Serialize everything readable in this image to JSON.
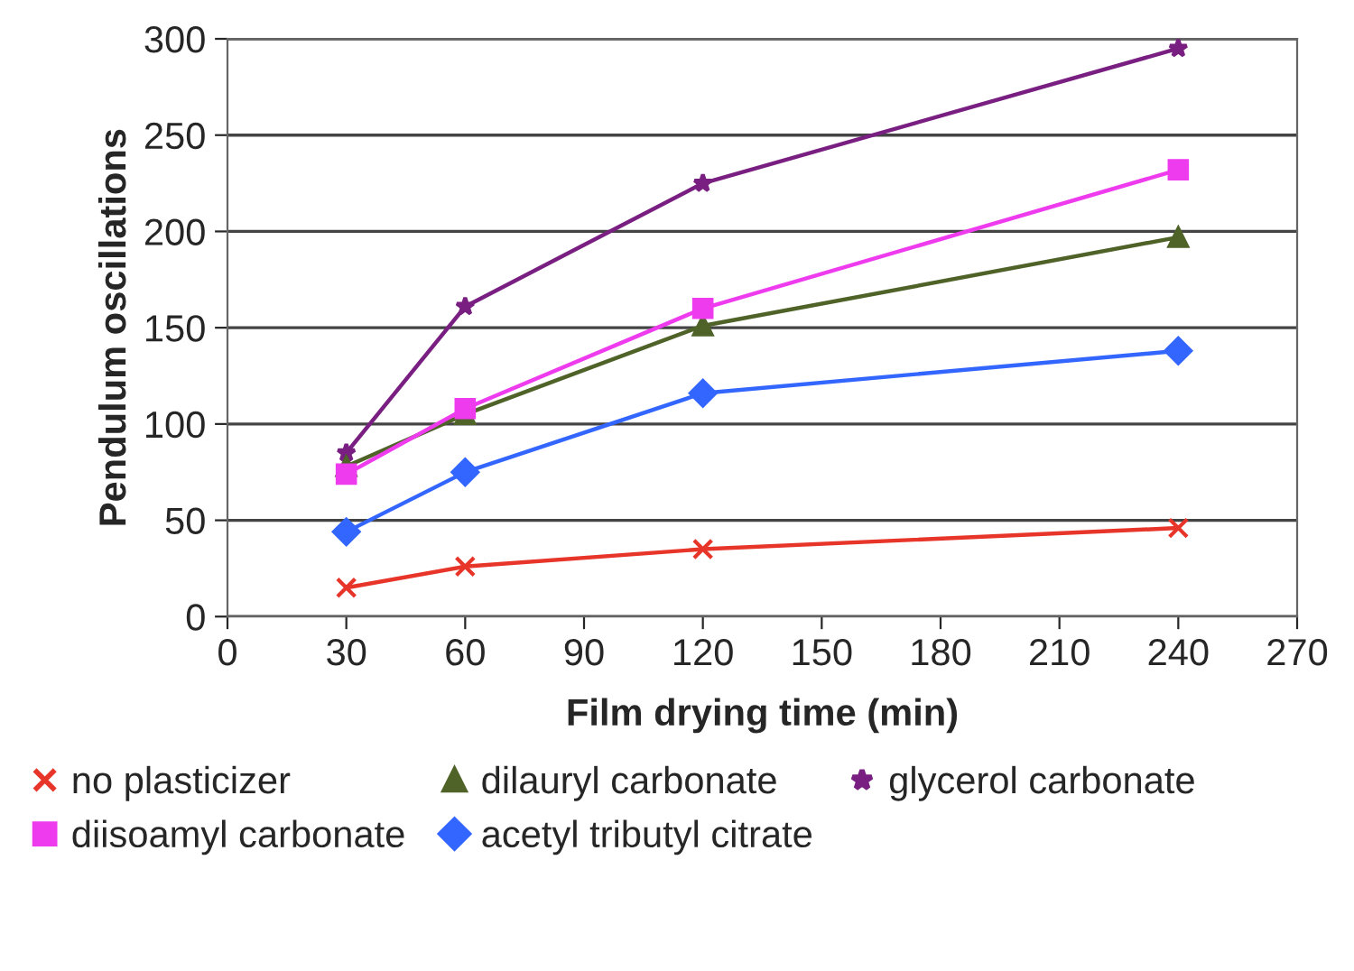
{
  "chart_data": {
    "type": "line",
    "xlabel": "Film drying time (min)",
    "ylabel": "Pendulum oscillations",
    "x": [
      30,
      60,
      120,
      240
    ],
    "series": [
      {
        "name": "no plasticizer",
        "color": "#e8352a",
        "marker": "cross",
        "values": [
          15,
          26,
          35,
          46
        ]
      },
      {
        "name": "diisoamyl carbonate",
        "color": "#ee3bee",
        "marker": "square",
        "values": [
          74,
          108,
          160,
          232
        ]
      },
      {
        "name": "dilauryl carbonate",
        "color": "#4f6228",
        "marker": "triangle",
        "values": [
          78,
          105,
          151,
          197
        ]
      },
      {
        "name": "acetyl tributyl citrate",
        "color": "#3366ff",
        "marker": "diamond",
        "values": [
          44,
          75,
          116,
          138
        ]
      },
      {
        "name": "glycerol carbonate",
        "color": "#7a1f82",
        "marker": "star",
        "values": [
          85,
          161,
          225,
          295
        ]
      }
    ],
    "xlim": [
      0,
      270
    ],
    "xticks": [
      0,
      30,
      60,
      90,
      120,
      150,
      180,
      210,
      240,
      270
    ],
    "ylim": [
      0,
      300
    ],
    "yticks": [
      0,
      50,
      100,
      150,
      200,
      250,
      300
    ],
    "grid": "y",
    "legend": "bottom"
  }
}
